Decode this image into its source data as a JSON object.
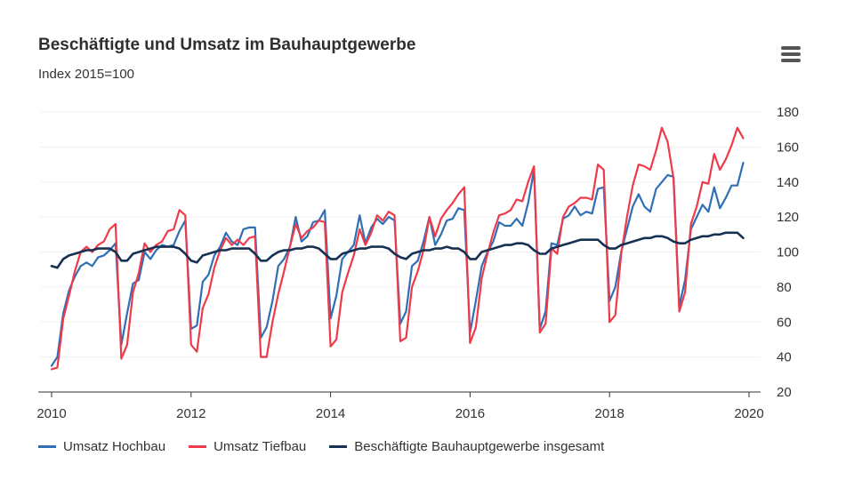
{
  "chart_data": {
    "type": "line",
    "title": "Beschäftigte und Umsatz im Bauhauptgewerbe",
    "subtitle": "Index 2015=100",
    "xlabel": "",
    "ylabel": "",
    "xlim": [
      2010,
      2020
    ],
    "ylim": [
      20,
      180
    ],
    "x_ticks": [
      "2010",
      "2012",
      "2014",
      "2016",
      "2018",
      "2020"
    ],
    "y_ticks": [
      "20",
      "40",
      "60",
      "80",
      "100",
      "120",
      "140",
      "160",
      "180"
    ],
    "grid": "horizontal",
    "legend_position": "bottom-left",
    "x_start": 2010.0,
    "x_step_months": 1,
    "series": [
      {
        "name": "Umsatz Hochbau",
        "color": "#2f6fb5",
        "values": [
          35,
          40,
          65,
          78,
          86,
          92,
          94,
          92,
          97,
          98,
          101,
          105,
          47,
          65,
          82,
          84,
          100,
          96,
          101,
          104,
          103,
          104,
          112,
          118,
          56,
          58,
          83,
          87,
          98,
          103,
          111,
          106,
          104,
          113,
          114,
          114,
          51,
          57,
          72,
          92,
          96,
          103,
          120,
          106,
          109,
          117,
          118,
          124,
          62,
          75,
          96,
          100,
          104,
          121,
          105,
          114,
          119,
          116,
          120,
          118,
          59,
          66,
          92,
          95,
          106,
          120,
          104,
          110,
          118,
          119,
          125,
          124,
          54,
          72,
          92,
          100,
          106,
          117,
          115,
          115,
          119,
          115,
          128,
          147,
          56,
          66,
          105,
          104,
          119,
          121,
          126,
          121,
          123,
          122,
          136,
          137,
          72,
          80,
          100,
          113,
          126,
          133,
          126,
          123,
          136,
          140,
          144,
          143,
          69,
          84,
          113,
          120,
          127,
          123,
          137,
          125,
          131,
          138,
          138,
          151
        ]
      },
      {
        "name": "Umsatz Tiefbau",
        "color": "#ef3a4a",
        "values": [
          33,
          34,
          62,
          75,
          89,
          100,
          103,
          100,
          104,
          106,
          113,
          116,
          39,
          47,
          77,
          88,
          105,
          100,
          104,
          106,
          112,
          113,
          124,
          121,
          47,
          43,
          68,
          76,
          91,
          101,
          108,
          104,
          107,
          104,
          108,
          109,
          40,
          40,
          60,
          76,
          89,
          103,
          116,
          108,
          112,
          114,
          118,
          117,
          46,
          50,
          77,
          88,
          98,
          113,
          104,
          111,
          121,
          118,
          123,
          121,
          49,
          51,
          80,
          89,
          101,
          120,
          109,
          119,
          124,
          128,
          133,
          137,
          48,
          57,
          85,
          99,
          111,
          121,
          122,
          124,
          130,
          129,
          140,
          149,
          54,
          59,
          102,
          99,
          120,
          126,
          128,
          131,
          131,
          130,
          150,
          147,
          60,
          64,
          99,
          120,
          138,
          150,
          149,
          147,
          158,
          171,
          163,
          142,
          66,
          77,
          116,
          126,
          140,
          139,
          156,
          147,
          153,
          161,
          171,
          165
        ]
      },
      {
        "name": "Beschäftigte Bauhauptgewerbe insgesamt",
        "color": "#173152",
        "values": [
          92,
          91,
          96,
          98,
          99,
          100,
          101,
          101,
          102,
          102,
          102,
          100,
          95,
          95,
          99,
          100,
          101,
          102,
          103,
          103,
          103,
          103,
          102,
          99,
          95,
          94,
          98,
          99,
          100,
          101,
          101,
          102,
          102,
          102,
          102,
          99,
          95,
          95,
          98,
          100,
          101,
          101,
          102,
          102,
          103,
          103,
          102,
          99,
          96,
          96,
          99,
          100,
          101,
          102,
          102,
          103,
          103,
          103,
          102,
          99,
          97,
          96,
          99,
          100,
          101,
          101,
          102,
          102,
          103,
          102,
          102,
          100,
          96,
          96,
          100,
          101,
          102,
          103,
          104,
          104,
          105,
          105,
          104,
          101,
          99,
          99,
          102,
          103,
          104,
          105,
          106,
          107,
          107,
          107,
          107,
          104,
          102,
          102,
          104,
          105,
          106,
          107,
          108,
          108,
          109,
          109,
          108,
          106,
          105,
          105,
          107,
          108,
          109,
          109,
          110,
          110,
          111,
          111,
          111,
          108
        ]
      }
    ]
  },
  "ui": {
    "menu_icon": "hamburger-menu-icon"
  }
}
